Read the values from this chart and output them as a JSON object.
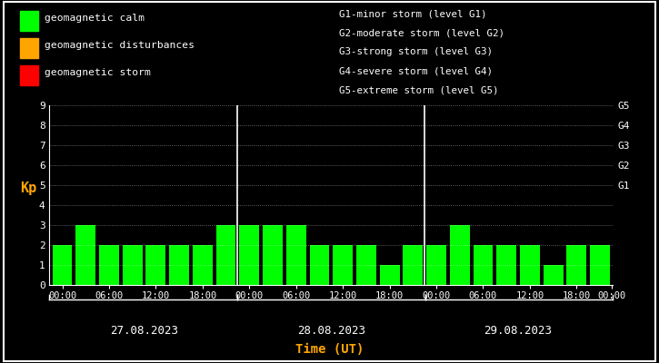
{
  "background_color": "#000000",
  "text_color": "#ffffff",
  "bar_color": "#00ff00",
  "orange_color": "#ffa500",
  "ylabel": "Kp",
  "xlabel": "Time (UT)",
  "ylim": [
    0,
    9
  ],
  "yticks": [
    0,
    1,
    2,
    3,
    4,
    5,
    6,
    7,
    8,
    9
  ],
  "right_labels": [
    "G5",
    "G4",
    "G3",
    "G2",
    "G1"
  ],
  "right_label_yvals": [
    9,
    8,
    7,
    6,
    5
  ],
  "days": [
    "27.08.2023",
    "28.08.2023",
    "29.08.2023"
  ],
  "kp_values": [
    [
      2,
      3,
      2,
      2,
      2,
      2,
      2,
      3
    ],
    [
      3,
      3,
      3,
      2,
      2,
      2,
      1,
      2
    ],
    [
      2,
      3,
      2,
      2,
      2,
      1,
      2,
      2
    ]
  ],
  "legend_items": [
    {
      "label": "geomagnetic calm",
      "color": "#00ff00"
    },
    {
      "label": "geomagnetic disturbances",
      "color": "#ffa500"
    },
    {
      "label": "geomagnetic storm",
      "color": "#ff0000"
    }
  ],
  "storm_labels": [
    "G1-minor storm (level G1)",
    "G2-moderate storm (level G2)",
    "G3-strong storm (level G3)",
    "G4-severe storm (level G4)",
    "G5-extreme storm (level G5)"
  ],
  "xtick_labels": [
    "00:00",
    "06:00",
    "12:00",
    "18:00",
    "00:00",
    "06:00",
    "12:00",
    "18:00",
    "00:00",
    "06:00",
    "12:00",
    "18:00",
    "00:00"
  ],
  "bar_width": 0.85,
  "figsize": [
    7.25,
    4.0
  ],
  "dpi": 100
}
